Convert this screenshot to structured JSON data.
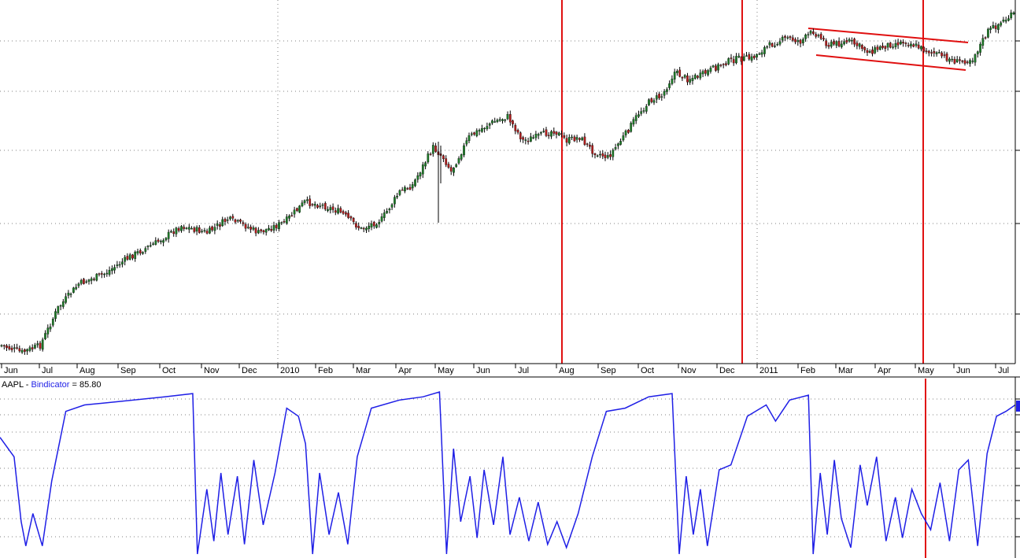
{
  "colors": {
    "candle_up": "#1e7a28",
    "candle_down": "#b01c1c",
    "wick": "#000000",
    "indicator_line": "#1f1fe6",
    "annotation_red": "#e01010",
    "grid": "#808080"
  },
  "chart_data": [
    {
      "type": "candlestick",
      "title": "",
      "xlabel": "",
      "ylabel": "",
      "grid": true,
      "x_tick_labels": [
        "Jun",
        "Jul",
        "Aug",
        "Sep",
        "Oct",
        "Nov",
        "Dec",
        "2010",
        "Feb",
        "Mar",
        "Apr",
        "May",
        "Jun",
        "Jul",
        "Aug",
        "Sep",
        "Oct",
        "Nov",
        "Dec",
        "2011",
        "Feb",
        "Mar",
        "Apr",
        "May",
        "Jun",
        "Jul"
      ],
      "price_path": [
        {
          "i": 0,
          "v": 3
        },
        {
          "i": 8,
          "v": 1
        },
        {
          "i": 15,
          "v": 3
        },
        {
          "i": 22,
          "v": 14
        },
        {
          "i": 30,
          "v": 21
        },
        {
          "i": 40,
          "v": 24
        },
        {
          "i": 50,
          "v": 29
        },
        {
          "i": 60,
          "v": 33
        },
        {
          "i": 70,
          "v": 38
        },
        {
          "i": 80,
          "v": 36
        },
        {
          "i": 88,
          "v": 40
        },
        {
          "i": 95,
          "v": 38
        },
        {
          "i": 100,
          "v": 36
        },
        {
          "i": 110,
          "v": 39
        },
        {
          "i": 118,
          "v": 45
        },
        {
          "i": 125,
          "v": 44
        },
        {
          "i": 132,
          "v": 42
        },
        {
          "i": 140,
          "v": 37
        },
        {
          "i": 148,
          "v": 40
        },
        {
          "i": 155,
          "v": 48
        },
        {
          "i": 160,
          "v": 50
        },
        {
          "i": 168,
          "v": 61
        },
        {
          "i": 172,
          "v": 58
        },
        {
          "i": 175,
          "v": 54
        },
        {
          "i": 182,
          "v": 64
        },
        {
          "i": 190,
          "v": 68
        },
        {
          "i": 197,
          "v": 70
        },
        {
          "i": 203,
          "v": 63
        },
        {
          "i": 208,
          "v": 64
        },
        {
          "i": 215,
          "v": 66
        },
        {
          "i": 220,
          "v": 63
        },
        {
          "i": 225,
          "v": 64
        },
        {
          "i": 230,
          "v": 60
        },
        {
          "i": 236,
          "v": 58
        },
        {
          "i": 243,
          "v": 65
        },
        {
          "i": 248,
          "v": 71
        },
        {
          "i": 253,
          "v": 75
        },
        {
          "i": 257,
          "v": 76
        },
        {
          "i": 262,
          "v": 83
        },
        {
          "i": 267,
          "v": 81
        },
        {
          "i": 272,
          "v": 82
        },
        {
          "i": 277,
          "v": 84
        },
        {
          "i": 282,
          "v": 86
        },
        {
          "i": 287,
          "v": 87
        },
        {
          "i": 292,
          "v": 87
        },
        {
          "i": 297,
          "v": 90
        },
        {
          "i": 302,
          "v": 92
        },
        {
          "i": 306,
          "v": 93
        },
        {
          "i": 311,
          "v": 92
        },
        {
          "i": 316,
          "v": 95
        },
        {
          "i": 322,
          "v": 91
        },
        {
          "i": 330,
          "v": 92
        },
        {
          "i": 338,
          "v": 89
        },
        {
          "i": 345,
          "v": 91
        },
        {
          "i": 352,
          "v": 92
        },
        {
          "i": 358,
          "v": 90
        },
        {
          "i": 365,
          "v": 88
        },
        {
          "i": 372,
          "v": 86
        },
        {
          "i": 378,
          "v": 87
        },
        {
          "i": 384,
          "v": 95
        },
        {
          "i": 390,
          "v": 98
        },
        {
          "i": 394,
          "v": 100
        }
      ],
      "series_note": "daily OHLC bars of AAPL, values shown relative to chart range"
    },
    {
      "type": "line",
      "title": "",
      "label_ticker": "AAPL",
      "label_separator": " - ",
      "label_indicator": "Bindicator",
      "label_value": " = 85.80",
      "grid": true,
      "ylim": [
        0,
        100
      ],
      "series": [
        {
          "name": "Bindicator",
          "waveform": [
            {
              "i": 0,
              "v": 72
            },
            {
              "i": 6,
              "v": 60
            },
            {
              "i": 9,
              "v": 20
            },
            {
              "i": 11,
              "v": 5
            },
            {
              "i": 14,
              "v": 25
            },
            {
              "i": 18,
              "v": 5
            },
            {
              "i": 22,
              "v": 45
            },
            {
              "i": 28,
              "v": 88
            },
            {
              "i": 36,
              "v": 92
            },
            {
              "i": 50,
              "v": 94
            },
            {
              "i": 70,
              "v": 97
            },
            {
              "i": 82,
              "v": 99
            },
            {
              "i": 84,
              "v": 0
            },
            {
              "i": 88,
              "v": 40
            },
            {
              "i": 91,
              "v": 8
            },
            {
              "i": 94,
              "v": 50
            },
            {
              "i": 97,
              "v": 12
            },
            {
              "i": 101,
              "v": 48
            },
            {
              "i": 104,
              "v": 6
            },
            {
              "i": 108,
              "v": 58
            },
            {
              "i": 112,
              "v": 18
            },
            {
              "i": 117,
              "v": 50
            },
            {
              "i": 122,
              "v": 90
            },
            {
              "i": 127,
              "v": 85
            },
            {
              "i": 130,
              "v": 68
            },
            {
              "i": 133,
              "v": 0
            },
            {
              "i": 136,
              "v": 50
            },
            {
              "i": 140,
              "v": 12
            },
            {
              "i": 144,
              "v": 38
            },
            {
              "i": 148,
              "v": 6
            },
            {
              "i": 152,
              "v": 60
            },
            {
              "i": 158,
              "v": 90
            },
            {
              "i": 170,
              "v": 95
            },
            {
              "i": 180,
              "v": 97
            },
            {
              "i": 187,
              "v": 100
            },
            {
              "i": 190,
              "v": 0
            },
            {
              "i": 193,
              "v": 65
            },
            {
              "i": 196,
              "v": 20
            },
            {
              "i": 200,
              "v": 48
            },
            {
              "i": 203,
              "v": 10
            },
            {
              "i": 206,
              "v": 52
            },
            {
              "i": 210,
              "v": 18
            },
            {
              "i": 214,
              "v": 60
            },
            {
              "i": 217,
              "v": 12
            },
            {
              "i": 221,
              "v": 35
            },
            {
              "i": 225,
              "v": 8
            },
            {
              "i": 229,
              "v": 32
            },
            {
              "i": 233,
              "v": 6
            },
            {
              "i": 237,
              "v": 20
            },
            {
              "i": 241,
              "v": 4
            },
            {
              "i": 246,
              "v": 25
            },
            {
              "i": 252,
              "v": 60
            },
            {
              "i": 258,
              "v": 88
            },
            {
              "i": 266,
              "v": 90
            },
            {
              "i": 276,
              "v": 97
            },
            {
              "i": 286,
              "v": 99
            },
            {
              "i": 289,
              "v": 0
            },
            {
              "i": 292,
              "v": 48
            },
            {
              "i": 295,
              "v": 12
            },
            {
              "i": 298,
              "v": 40
            },
            {
              "i": 301,
              "v": 5
            },
            {
              "i": 306,
              "v": 52
            },
            {
              "i": 311,
              "v": 55
            },
            {
              "i": 318,
              "v": 85
            },
            {
              "i": 326,
              "v": 92
            },
            {
              "i": 330,
              "v": 82
            },
            {
              "i": 336,
              "v": 95
            },
            {
              "i": 344,
              "v": 98
            },
            {
              "i": 346,
              "v": 0
            },
            {
              "i": 349,
              "v": 50
            },
            {
              "i": 352,
              "v": 12
            },
            {
              "i": 355,
              "v": 58
            },
            {
              "i": 358,
              "v": 22
            },
            {
              "i": 362,
              "v": 4
            },
            {
              "i": 366,
              "v": 55
            },
            {
              "i": 369,
              "v": 30
            },
            {
              "i": 373,
              "v": 60
            },
            {
              "i": 377,
              "v": 8
            },
            {
              "i": 381,
              "v": 35
            },
            {
              "i": 384,
              "v": 10
            },
            {
              "i": 388,
              "v": 40
            },
            {
              "i": 392,
              "v": 25
            },
            {
              "i": 396,
              "v": 15
            },
            {
              "i": 400,
              "v": 44
            },
            {
              "i": 404,
              "v": 8
            },
            {
              "i": 408,
              "v": 52
            },
            {
              "i": 412,
              "v": 58
            },
            {
              "i": 416,
              "v": 5
            },
            {
              "i": 420,
              "v": 62
            },
            {
              "i": 424,
              "v": 85
            },
            {
              "i": 428,
              "v": 88
            },
            {
              "i": 432,
              "v": 92
            }
          ]
        }
      ]
    }
  ]
}
